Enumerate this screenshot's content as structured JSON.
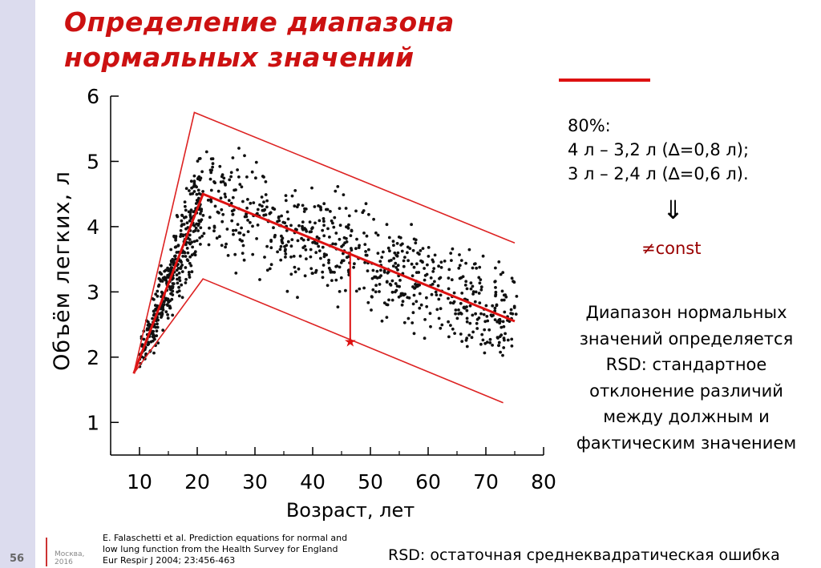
{
  "title": {
    "line1": "Определение диапазона",
    "line2": "нормальных значений"
  },
  "chart_data": {
    "type": "scatter",
    "xlabel": "Возраст, лет",
    "ylabel": "Объём легких, л",
    "xlim": [
      5,
      80
    ],
    "ylim": [
      0.5,
      6
    ],
    "x_ticks": [
      10,
      20,
      30,
      40,
      50,
      60,
      70,
      80
    ],
    "y_ticks": [
      1,
      2,
      3,
      4,
      5,
      6
    ],
    "grid": false,
    "series": [
      {
        "kind": "mean-line",
        "color": "#dd1111",
        "points": [
          [
            9,
            1.75
          ],
          [
            21,
            4.5
          ],
          [
            75,
            2.55
          ]
        ]
      },
      {
        "kind": "upper-bound",
        "color": "#dd2222",
        "points": [
          [
            9,
            1.75
          ],
          [
            19.5,
            5.75
          ],
          [
            75,
            3.75
          ]
        ]
      },
      {
        "kind": "lower-bound",
        "color": "#dd2222",
        "points": [
          [
            9,
            1.75
          ],
          [
            21,
            3.2
          ],
          [
            73,
            1.3
          ]
        ]
      }
    ],
    "annotation": {
      "x": 46.5,
      "y_top": 3.62,
      "y_bottom": 2.25,
      "marker": "★",
      "color": "#dd1111"
    },
    "scatter_color": "#111111",
    "scatter_approx_count": 1100
  },
  "stats": {
    "header": "80%:",
    "line1": "4 л – 3,2 л (∆=0,8 л);",
    "line2": "3 л – 2,4 л (∆=0,6 л)."
  },
  "arrow": "⇓",
  "neq_const": "≠const",
  "description": [
    "Диапазон нормальных",
    "значений определяется",
    "RSD: стандартное",
    "отклонение различий",
    "между должным и",
    "фактическим значением"
  ],
  "footer": {
    "page_number": "56",
    "city": "Москва,",
    "year": "2016",
    "reference": [
      "E. Falaschetti et al. Prediction equations for normal and",
      "low lung function from the Health Survey for England",
      "Eur Respir J 2004; 23:456-463"
    ],
    "rsd_note": "RSD: остаточная среднеквадратическая ошибка"
  },
  "colors": {
    "title": "#cc1111",
    "accent": "#dd1111",
    "strip": "#dcdcee"
  }
}
